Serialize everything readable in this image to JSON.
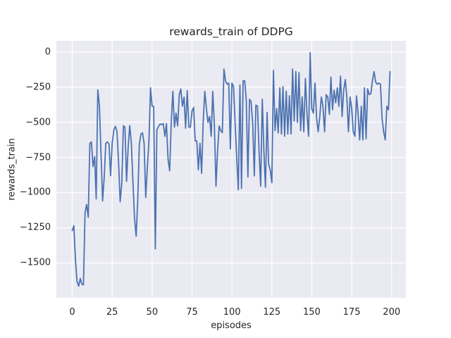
{
  "figure": {
    "background": "#ffffff",
    "axes_background": "#eaeaf2",
    "grid_color": "#ffffff",
    "text_color": "#262626"
  },
  "chart_data": {
    "type": "line",
    "title": "rewards_train of DDPG",
    "xlabel": "episodes",
    "ylabel": "rewards_train",
    "legend": "none",
    "grid": "on",
    "line_color": "#4c72b0",
    "xlim": [
      -9.95,
      208.95
    ],
    "ylim": [
      -1748,
      78
    ],
    "x_ticks": [
      {
        "value": 0,
        "label": "0"
      },
      {
        "value": 25,
        "label": "25"
      },
      {
        "value": 50,
        "label": "50"
      },
      {
        "value": 75,
        "label": "75"
      },
      {
        "value": 100,
        "label": "100"
      },
      {
        "value": 125,
        "label": "125"
      },
      {
        "value": 150,
        "label": "150"
      },
      {
        "value": 175,
        "label": "175"
      },
      {
        "value": 200,
        "label": "200"
      }
    ],
    "y_ticks": [
      {
        "value": 0,
        "label": "0"
      },
      {
        "value": -250,
        "label": "−250"
      },
      {
        "value": -500,
        "label": "−500"
      },
      {
        "value": -750,
        "label": "−750"
      },
      {
        "value": -1000,
        "label": "−1000"
      },
      {
        "value": -1250,
        "label": "−1250"
      },
      {
        "value": -1500,
        "label": "−1500"
      }
    ],
    "series": [
      {
        "name": "rewards_train",
        "x_start": 0,
        "x_step": 1,
        "values": [
          -1270,
          -1235,
          -1480,
          -1630,
          -1665,
          -1610,
          -1650,
          -1655,
          -1140,
          -1085,
          -1175,
          -650,
          -640,
          -815,
          -745,
          -1045,
          -270,
          -385,
          -715,
          -1060,
          -890,
          -650,
          -640,
          -655,
          -880,
          -650,
          -555,
          -530,
          -565,
          -790,
          -1065,
          -935,
          -525,
          -535,
          -920,
          -675,
          -525,
          -650,
          -920,
          -1180,
          -1310,
          -1065,
          -660,
          -585,
          -575,
          -650,
          -1035,
          -830,
          -640,
          -255,
          -385,
          -390,
          -1400,
          -555,
          -530,
          -513,
          -518,
          -510,
          -600,
          -510,
          -765,
          -845,
          -502,
          -281,
          -535,
          -436,
          -527,
          -305,
          -264,
          -387,
          -322,
          -543,
          -276,
          -535,
          -535,
          -420,
          -395,
          -633,
          -633,
          -838,
          -650,
          -863,
          -502,
          -281,
          -403,
          -502,
          -460,
          -600,
          -281,
          -518,
          -954,
          -708,
          -527,
          -560,
          -575,
          -123,
          -210,
          -230,
          -222,
          -690,
          -222,
          -246,
          -510,
          -750,
          -980,
          -235,
          -971,
          -206,
          -206,
          -345,
          -889,
          -337,
          -353,
          -510,
          -881,
          -378,
          -387,
          -716,
          -954,
          -337,
          -708,
          -962,
          -430,
          -798,
          -840,
          -930,
          -132,
          -560,
          -403,
          -576,
          -255,
          -584,
          -247,
          -600,
          -280,
          -584,
          -312,
          -584,
          -123,
          -493,
          -140,
          -502,
          -148,
          -560,
          -320,
          -568,
          -189,
          -436,
          -600,
          -5,
          -403,
          -436,
          -222,
          -469,
          -568,
          -461,
          -321,
          -387,
          -568,
          -304,
          -321,
          -444,
          -180,
          -412,
          -272,
          -362,
          -255,
          -387,
          -172,
          -460,
          -272,
          -197,
          -330,
          -568,
          -321,
          -403,
          -568,
          -600,
          -313,
          -436,
          -626,
          -387,
          -626,
          -255,
          -618,
          -263,
          -304,
          -296,
          -206,
          -140,
          -214,
          -230,
          -222,
          -230,
          -468,
          -568,
          -626,
          -387,
          -412,
          -140
        ]
      }
    ]
  }
}
